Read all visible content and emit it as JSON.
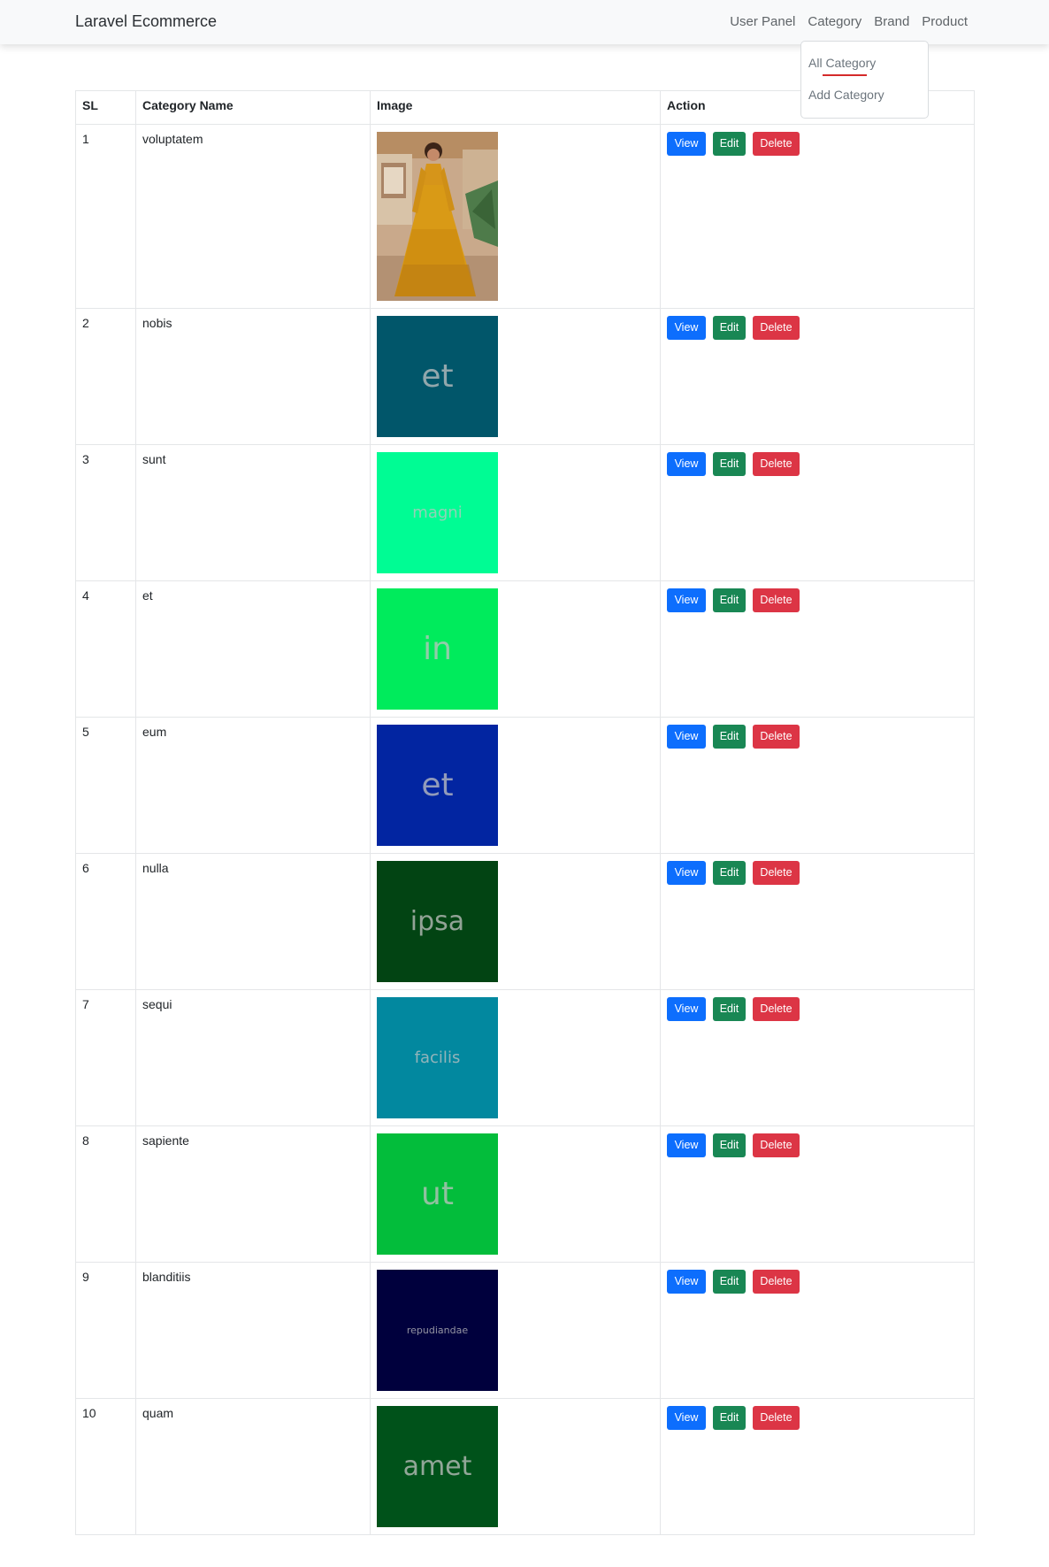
{
  "navbar": {
    "brand": "Laravel Ecommerce",
    "links": [
      "User Panel",
      "Category",
      "Brand",
      "Product"
    ]
  },
  "dropdown": {
    "items": [
      "All Category",
      "Add Category"
    ]
  },
  "table": {
    "headers": {
      "sl": "SL",
      "name": "Category Name",
      "image": "Image",
      "action": "Action"
    },
    "buttons": {
      "view": "View",
      "edit": "Edit",
      "delete": "Delete"
    },
    "rows": [
      {
        "sl": "1",
        "name": "voluptatem",
        "image_text": "",
        "image_color": "#d69a1c",
        "image_kind": "photo"
      },
      {
        "sl": "2",
        "name": "nobis",
        "image_text": "et",
        "image_color": "#01566a",
        "image_kind": "placeholder"
      },
      {
        "sl": "3",
        "name": "sunt",
        "image_text": "magni",
        "image_color": "#00fc94",
        "image_kind": "placeholder"
      },
      {
        "sl": "4",
        "name": "et",
        "image_text": "in",
        "image_color": "#00eb5c",
        "image_kind": "placeholder"
      },
      {
        "sl": "5",
        "name": "eum",
        "image_text": "et",
        "image_color": "#0225a1",
        "image_kind": "placeholder"
      },
      {
        "sl": "6",
        "name": "nulla",
        "image_text": "ipsa",
        "image_color": "#024413",
        "image_kind": "placeholder"
      },
      {
        "sl": "7",
        "name": "sequi",
        "image_text": "facilis",
        "image_color": "#02889f",
        "image_kind": "placeholder"
      },
      {
        "sl": "8",
        "name": "sapiente",
        "image_text": "ut",
        "image_color": "#03bd3b",
        "image_kind": "placeholder"
      },
      {
        "sl": "9",
        "name": "blanditiis",
        "image_text": "repudiandae",
        "image_color": "#00003d",
        "image_kind": "placeholder"
      },
      {
        "sl": "10",
        "name": "quam",
        "image_text": "amet",
        "image_color": "#00521a",
        "image_kind": "placeholder"
      }
    ]
  },
  "colors": {
    "view": "#0d6efd",
    "edit": "#198754",
    "delete": "#dc3545",
    "active_underline": "#d42a2a"
  }
}
